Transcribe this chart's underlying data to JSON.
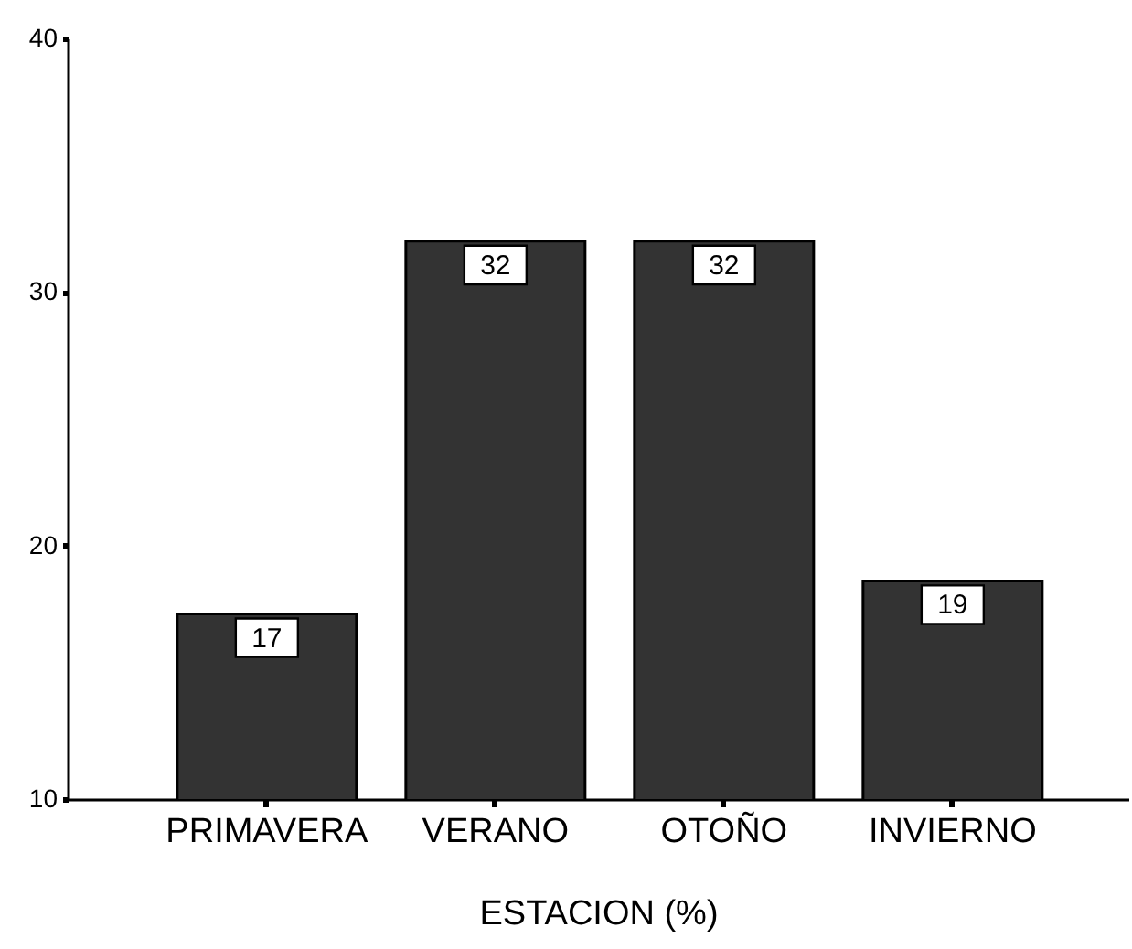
{
  "chart_data": {
    "type": "bar",
    "xlabel": "ESTACION (%)",
    "categories": [
      "PRIMAVERA",
      "VERANO",
      "OTOÑO",
      "INVIERNO"
    ],
    "values": [
      17.3,
      32.0,
      32.0,
      18.6
    ],
    "color": "#333333",
    "value_labels": [
      "17",
      "32",
      "32",
      "19"
    ],
    "ylim": [
      10,
      40
    ],
    "yticks": [
      10,
      20,
      30,
      40
    ],
    "grid": false
  }
}
